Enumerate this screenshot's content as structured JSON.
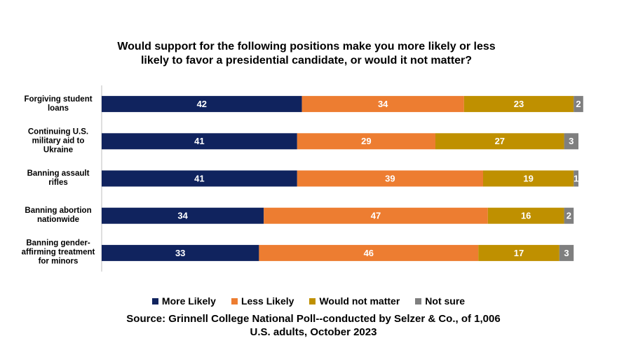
{
  "chart_data": {
    "type": "stacked-barh",
    "title": "Would support for the following positions make you more likely or less likely to favor a presidential candidate, or would it not matter?",
    "source": "Source: Grinnell College National Poll--conducted by Selzer & Co., of 1,006 U.S. adults, October 2023",
    "categories": [
      "Forgiving student loans",
      "Continuing U.S. military aid to Ukraine",
      "Banning assault rifles",
      "Banning abortion nationwide",
      "Banning gender-affirming treatment for minors"
    ],
    "series": [
      {
        "name": "More Likely",
        "color": "#10235e",
        "values": [
          42,
          41,
          41,
          34,
          33
        ]
      },
      {
        "name": "Less Likely",
        "color": "#ed7d31",
        "values": [
          34,
          29,
          39,
          47,
          46
        ]
      },
      {
        "name": "Would not matter",
        "color": "#bf9000",
        "values": [
          23,
          27,
          19,
          16,
          17
        ]
      },
      {
        "name": "Not sure",
        "color": "#7f7f7f",
        "values": [
          2,
          3,
          1,
          2,
          3
        ]
      }
    ],
    "xlim": [
      0,
      100
    ]
  }
}
